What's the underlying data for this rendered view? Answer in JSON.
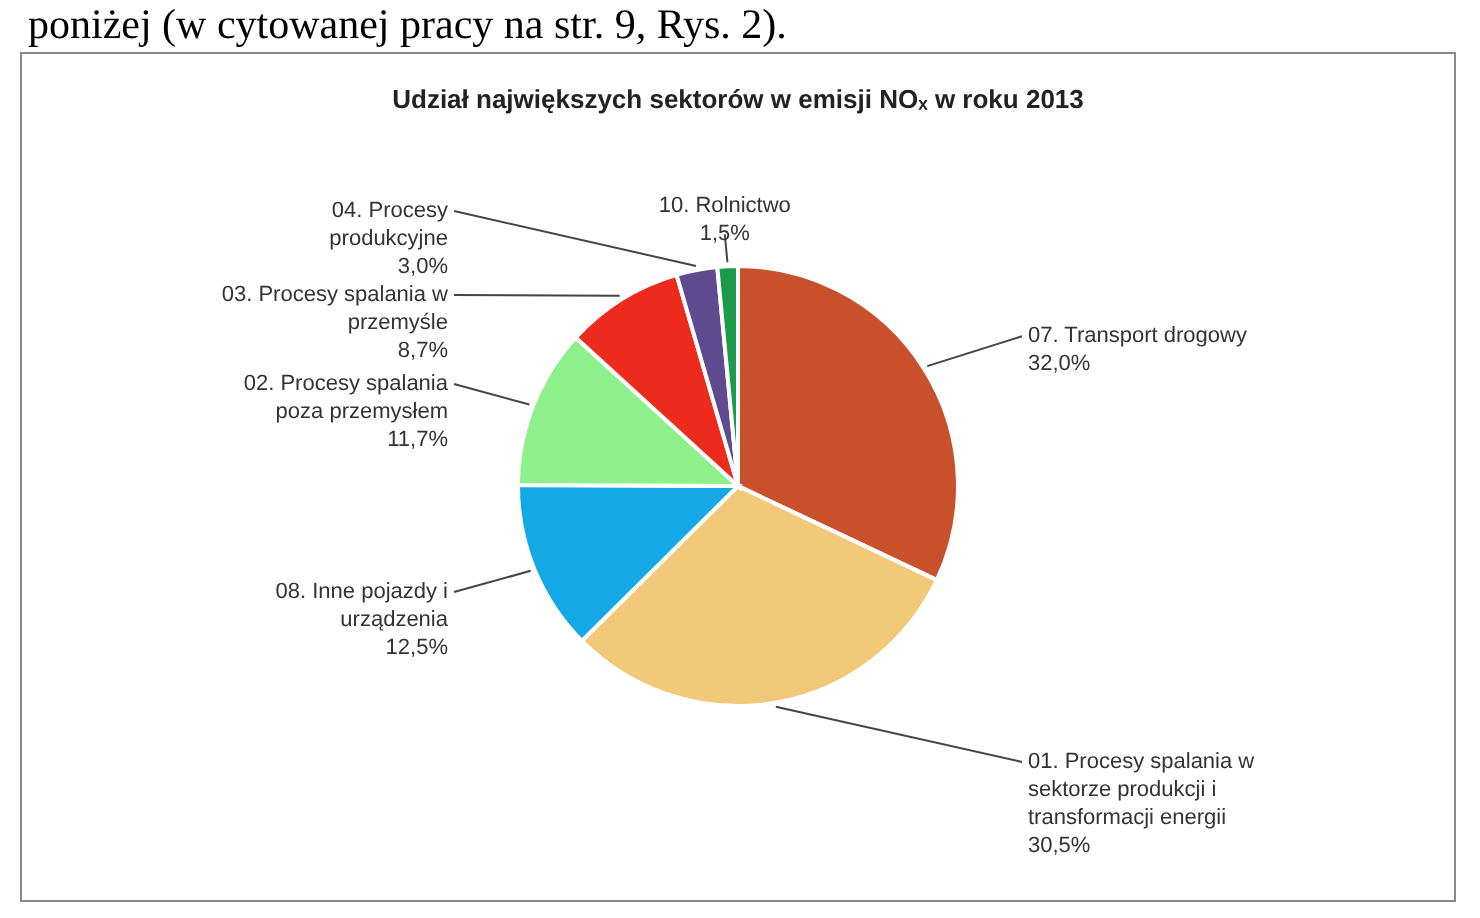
{
  "chart_data": {
    "type": "pie",
    "title": "Udział największych sektorów w emisji NOₓ w roku 2013",
    "categories": [
      "07. Transport drogowy",
      "01. Procesy spalania w sektorze produkcji i transformacji energii",
      "08. Inne pojazdy i urządzenia",
      "02. Procesy spalania poza przemysłem",
      "03. Procesy spalania w przemyśle",
      "04. Procesy produkcyjne",
      "10. Rolnictwo"
    ],
    "values": [
      32.0,
      30.5,
      12.5,
      11.7,
      8.7,
      3.0,
      1.5
    ],
    "value_labels": [
      "32,0%",
      "30,5%",
      "12,5%",
      "11,7%",
      "8,7%",
      "3,0%",
      "1,5%"
    ],
    "colors": [
      "#c8512b",
      "#f2c978",
      "#14a8e6",
      "#8ef08a",
      "#ec2b1c",
      "#5e4a8e",
      "#1e9a4c"
    ],
    "annotations": [
      "poniżej (w cytowanej pracy na str. 9, Rys. 2)."
    ]
  }
}
